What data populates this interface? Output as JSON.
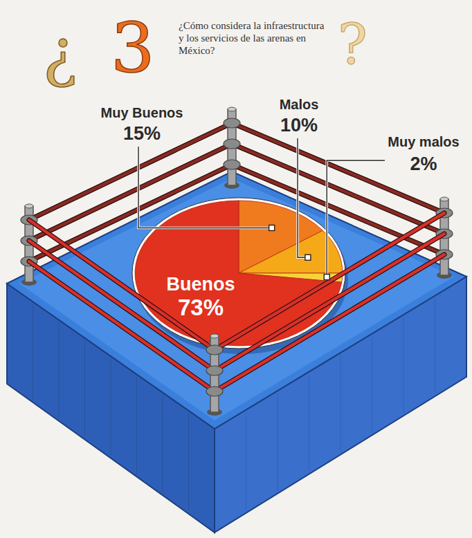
{
  "chart_data": {
    "type": "pie",
    "title": "¿Cómo considera la infraestructura y los servicios de las arenas en México?",
    "annotations": [
      "¿3?"
    ],
    "categories": [
      "Muy Buenos",
      "Malos",
      "Muy malos",
      "Buenos"
    ],
    "values": [
      15,
      10,
      2,
      73
    ],
    "value_labels": [
      "15%",
      "10%",
      "2%",
      "73%"
    ],
    "colors": [
      "#f07a1e",
      "#f5a818",
      "#f7d23a",
      "#e0321e"
    ],
    "data_labels": true
  }
}
